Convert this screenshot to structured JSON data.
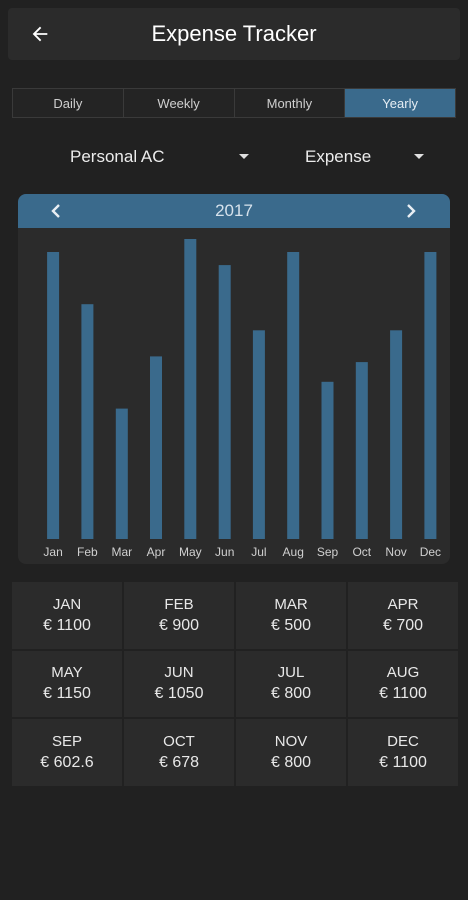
{
  "header": {
    "title": "Expense Tracker",
    "back_icon": "arrow-left-icon"
  },
  "tabs": [
    {
      "label": "Daily",
      "active": false
    },
    {
      "label": "Weekly",
      "active": false
    },
    {
      "label": "Monthly",
      "active": false
    },
    {
      "label": "Yearly",
      "active": true
    }
  ],
  "filters": {
    "account": {
      "value": "Personal AC"
    },
    "type": {
      "value": "Expense"
    }
  },
  "colors": {
    "accent": "#3a6a8c",
    "background": "#212121",
    "surface": "#2b2b2b"
  },
  "chart_data": {
    "type": "bar",
    "categories": [
      "Jan",
      "Feb",
      "Mar",
      "Apr",
      "May",
      "Jun",
      "Jul",
      "Aug",
      "Sep",
      "Oct",
      "Nov",
      "Dec"
    ],
    "values": [
      1100,
      900,
      500,
      700,
      1150,
      1050,
      800,
      1100,
      602.6,
      678,
      800,
      1100
    ],
    "title": "2017",
    "ylim": [
      0,
      1150
    ],
    "grid": false,
    "bar_color": "#3a6a8c"
  },
  "summary": [
    {
      "month": "JAN",
      "amount": "€ 1100"
    },
    {
      "month": "FEB",
      "amount": "€ 900"
    },
    {
      "month": "MAR",
      "amount": "€ 500"
    },
    {
      "month": "APR",
      "amount": "€ 700"
    },
    {
      "month": "MAY",
      "amount": "€ 1150"
    },
    {
      "month": "JUN",
      "amount": "€ 1050"
    },
    {
      "month": "JUL",
      "amount": "€ 800"
    },
    {
      "month": "AUG",
      "amount": "€ 1100"
    },
    {
      "month": "SEP",
      "amount": "€ 602.6"
    },
    {
      "month": "OCT",
      "amount": "€ 678"
    },
    {
      "month": "NOV",
      "amount": "€ 800"
    },
    {
      "month": "DEC",
      "amount": "€ 1100"
    }
  ]
}
